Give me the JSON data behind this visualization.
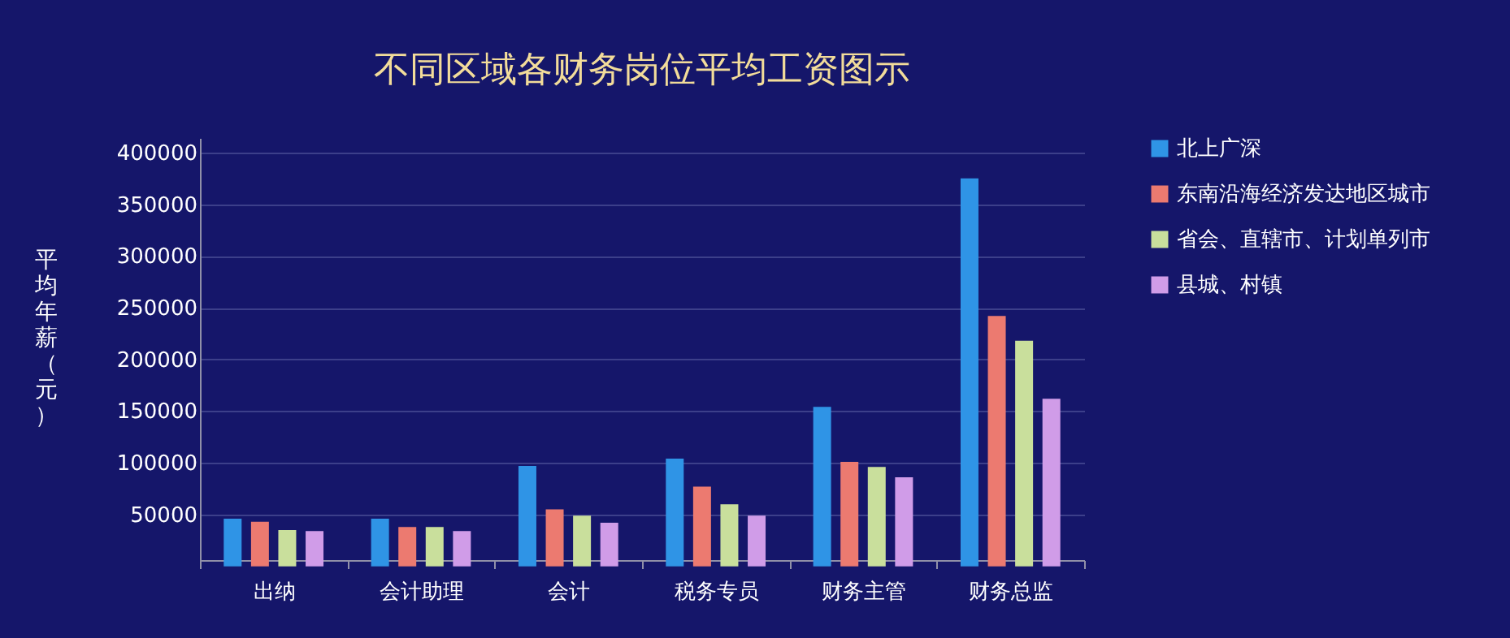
{
  "chart_data": {
    "type": "bar",
    "title": "不同区域各财务岗位平均工资图示",
    "ylabel": "平均年薪（元）",
    "categories": [
      "出纳",
      "会计助理",
      "会计",
      "税务专员",
      "财务主管",
      "财务总监"
    ],
    "series": [
      {
        "name": "北上广深",
        "color": "#2f94e6",
        "values": [
          46000,
          46000,
          97000,
          104000,
          154000,
          375000
        ]
      },
      {
        "name": "东南沿海经济发达地区城市",
        "color": "#ec7a70",
        "values": [
          43000,
          38000,
          55000,
          77000,
          101000,
          242000
        ]
      },
      {
        "name": "省会、直辖市、计划单列市",
        "color": "#c9df9c",
        "values": [
          35000,
          38000,
          49000,
          60000,
          96000,
          218000
        ]
      },
      {
        "name": "县城、村镇",
        "color": "#d09ce8",
        "values": [
          34000,
          34000,
          42000,
          49000,
          86000,
          162000
        ]
      }
    ],
    "ylim": [
      6000,
      414000
    ],
    "yticks": [
      50000,
      100000,
      150000,
      200000,
      250000,
      300000,
      350000,
      400000
    ],
    "grid": "y",
    "legend": "right"
  }
}
